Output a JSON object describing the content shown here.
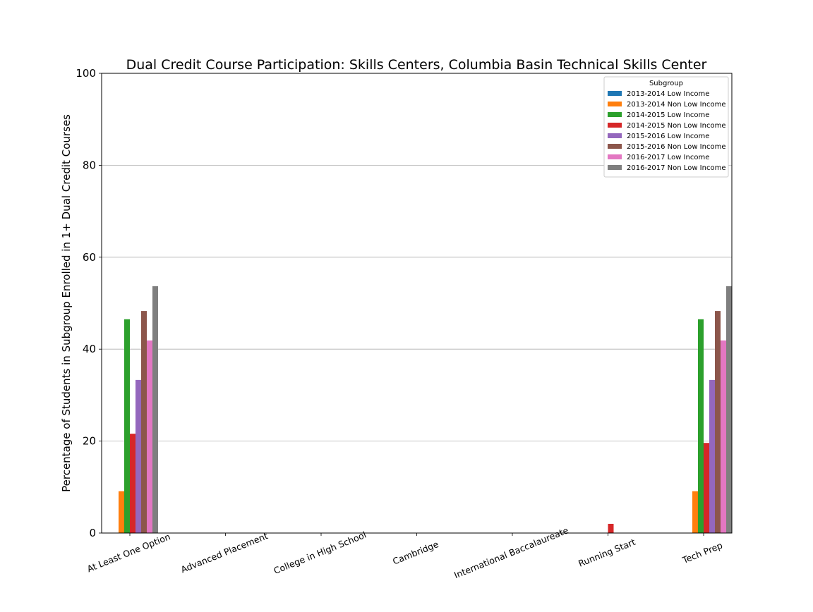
{
  "chart_data": {
    "type": "bar",
    "title": "Dual Credit Course Participation: Skills Centers, Columbia Basin Technical Skills Center",
    "xlabel": "",
    "ylabel": "Percentage of Students in Subgroup Enrolled in 1+ Dual Credit Courses",
    "ylim": [
      0,
      100
    ],
    "yticks": [
      0,
      20,
      40,
      60,
      80,
      100
    ],
    "grid": "horizontal",
    "legend": {
      "title": "Subgroup",
      "placement": "top-right"
    },
    "categories": [
      "At Least One Option",
      "Advanced Placement",
      "College in High School",
      "Cambridge",
      "International Baccalaureate",
      "Running Start",
      "Tech Prep"
    ],
    "series": [
      {
        "name": "2013-2014 Low Income",
        "color": "#1f77b4",
        "values": [
          0,
          0,
          0,
          0,
          0,
          0,
          0
        ]
      },
      {
        "name": "2013-2014 Non Low Income",
        "color": "#ff7f0e",
        "values": [
          9.1,
          0,
          0,
          0,
          0,
          0,
          9.1
        ]
      },
      {
        "name": "2014-2015 Low Income",
        "color": "#2ca02c",
        "values": [
          46.5,
          0,
          0,
          0,
          0,
          0,
          46.5
        ]
      },
      {
        "name": "2014-2015 Non Low Income",
        "color": "#d62728",
        "values": [
          21.6,
          0,
          0,
          0,
          0,
          2.0,
          19.6
        ]
      },
      {
        "name": "2015-2016 Low Income",
        "color": "#9467bd",
        "values": [
          33.3,
          0,
          0,
          0,
          0,
          0,
          33.3
        ]
      },
      {
        "name": "2015-2016 Non Low Income",
        "color": "#8c564b",
        "values": [
          48.3,
          0,
          0,
          0,
          0,
          0,
          48.3
        ]
      },
      {
        "name": "2016-2017 Low Income",
        "color": "#e377c2",
        "values": [
          41.9,
          0,
          0,
          0,
          0,
          0,
          41.9
        ]
      },
      {
        "name": "2016-2017 Non Low Income",
        "color": "#7f7f7f",
        "values": [
          53.7,
          0,
          0,
          0,
          0,
          0,
          53.7
        ]
      }
    ]
  }
}
